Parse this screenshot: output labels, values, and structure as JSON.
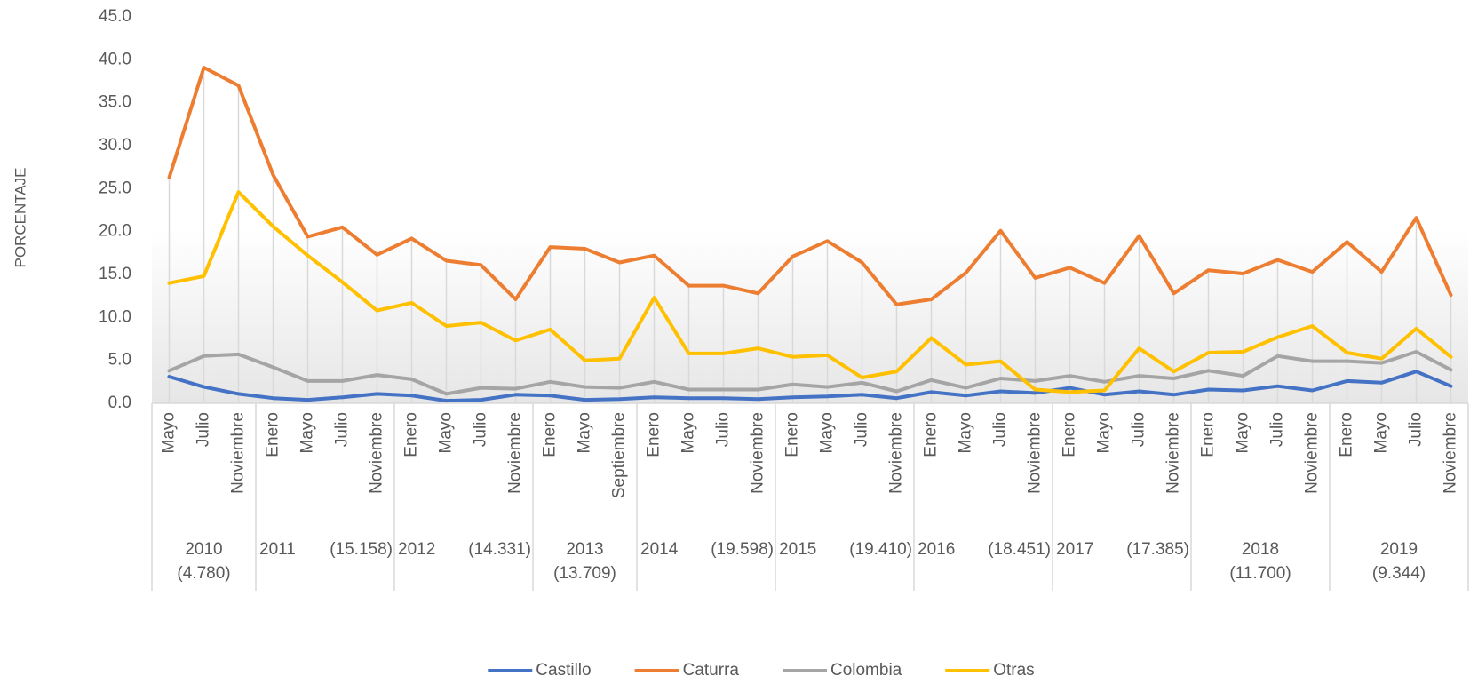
{
  "chart_data": {
    "type": "line",
    "y_label": "PORCENTAJE",
    "categories": [
      "Mayo",
      "Julio",
      "Noviembre",
      "Enero",
      "Mayo",
      "Julio",
      "Noviembre",
      "Enero",
      "Mayo",
      "Julio",
      "Noviembre",
      "Enero",
      "Mayo",
      "Septiembre",
      "Enero",
      "Mayo",
      "Julio",
      "Noviembre",
      "Enero",
      "Mayo",
      "Julio",
      "Noviembre",
      "Enero",
      "Mayo",
      "Julio",
      "Noviembre",
      "Enero",
      "Mayo",
      "Julio",
      "Noviembre",
      "Enero",
      "Mayo",
      "Julio",
      "Noviembre",
      "Enero",
      "Mayo",
      "Julio",
      "Noviembre"
    ],
    "groups": [
      {
        "label": "2010",
        "note": "(4.780)",
        "size": 3,
        "wrap": true
      },
      {
        "label": "2011",
        "note": "(15.158)",
        "size": 4,
        "wrap": false
      },
      {
        "label": "2012",
        "note": "(14.331)",
        "size": 4,
        "wrap": false
      },
      {
        "label": "2013",
        "note": "(13.709)",
        "size": 3,
        "wrap": true
      },
      {
        "label": "2014",
        "note": "(19.598)",
        "size": 4,
        "wrap": false
      },
      {
        "label": "2015",
        "note": "(19.410)",
        "size": 4,
        "wrap": false
      },
      {
        "label": "2016",
        "note": "(18.451)",
        "size": 4,
        "wrap": false
      },
      {
        "label": "2017",
        "note": "(17.385)",
        "size": 4,
        "wrap": false
      },
      {
        "label": "2018",
        "note": "(11.700)",
        "size": 4,
        "wrap": true
      },
      {
        "label": "2019",
        "note": "(9.344)",
        "size": 4,
        "wrap": true
      }
    ],
    "series": [
      {
        "name": "Castillo",
        "color": "#4472c4",
        "values": [
          3.1,
          1.9,
          1.1,
          0.6,
          0.4,
          0.7,
          1.1,
          0.9,
          0.3,
          0.4,
          1.0,
          0.9,
          0.4,
          0.5,
          0.7,
          0.6,
          0.6,
          0.5,
          0.7,
          0.8,
          1.0,
          0.6,
          1.3,
          0.9,
          1.4,
          1.2,
          1.8,
          1.0,
          1.4,
          1.0,
          1.6,
          1.5,
          2.0,
          1.5,
          2.6,
          2.4,
          3.7,
          2.0
        ]
      },
      {
        "name": "Caturra",
        "color": "#ed7d31",
        "values": [
          26.3,
          39.1,
          37.0,
          26.6,
          19.4,
          20.5,
          17.3,
          19.2,
          16.6,
          16.1,
          12.1,
          18.2,
          18.0,
          16.4,
          17.2,
          13.7,
          13.7,
          12.8,
          17.1,
          18.9,
          16.4,
          11.5,
          12.1,
          15.2,
          20.1,
          14.6,
          15.8,
          14.0,
          19.5,
          12.8,
          15.5,
          15.1,
          16.7,
          15.3,
          18.8,
          15.3,
          21.6,
          12.6
        ]
      },
      {
        "name": "Colombia",
        "color": "#a5a5a5",
        "values": [
          3.8,
          5.5,
          5.7,
          4.2,
          2.6,
          2.6,
          3.3,
          2.8,
          1.1,
          1.8,
          1.7,
          2.5,
          1.9,
          1.8,
          2.5,
          1.6,
          1.6,
          1.6,
          2.2,
          1.9,
          2.4,
          1.4,
          2.7,
          1.8,
          2.9,
          2.6,
          3.2,
          2.5,
          3.2,
          2.9,
          3.8,
          3.2,
          5.5,
          4.9,
          4.9,
          4.7,
          6.0,
          3.9
        ]
      },
      {
        "name": "Otras",
        "color": "#ffc000",
        "values": [
          14.0,
          14.8,
          24.6,
          20.6,
          17.2,
          14.1,
          10.8,
          11.7,
          9.0,
          9.4,
          7.3,
          8.6,
          5.0,
          5.2,
          12.3,
          5.8,
          5.8,
          6.4,
          5.4,
          5.6,
          3.0,
          3.7,
          7.6,
          4.5,
          4.9,
          1.6,
          1.3,
          1.5,
          6.4,
          3.7,
          5.9,
          6.0,
          7.7,
          9.0,
          5.9,
          5.2,
          8.7,
          5.4
        ]
      }
    ],
    "ylim": [
      0,
      45
    ],
    "yticks": [
      {
        "value": 0,
        "label": "0.0"
      },
      {
        "value": 5,
        "label": "5.0"
      },
      {
        "value": 10,
        "label": "10.0"
      },
      {
        "value": 15,
        "label": "15.0"
      },
      {
        "value": 20,
        "label": "20.0"
      },
      {
        "value": 25,
        "label": "25.0"
      },
      {
        "value": 30,
        "label": "30.0"
      },
      {
        "value": 35,
        "label": "35.0"
      },
      {
        "value": 40,
        "label": "40.0"
      },
      {
        "value": 45,
        "label": "45.0"
      }
    ],
    "drop_lines": true,
    "legend": "bottom"
  }
}
